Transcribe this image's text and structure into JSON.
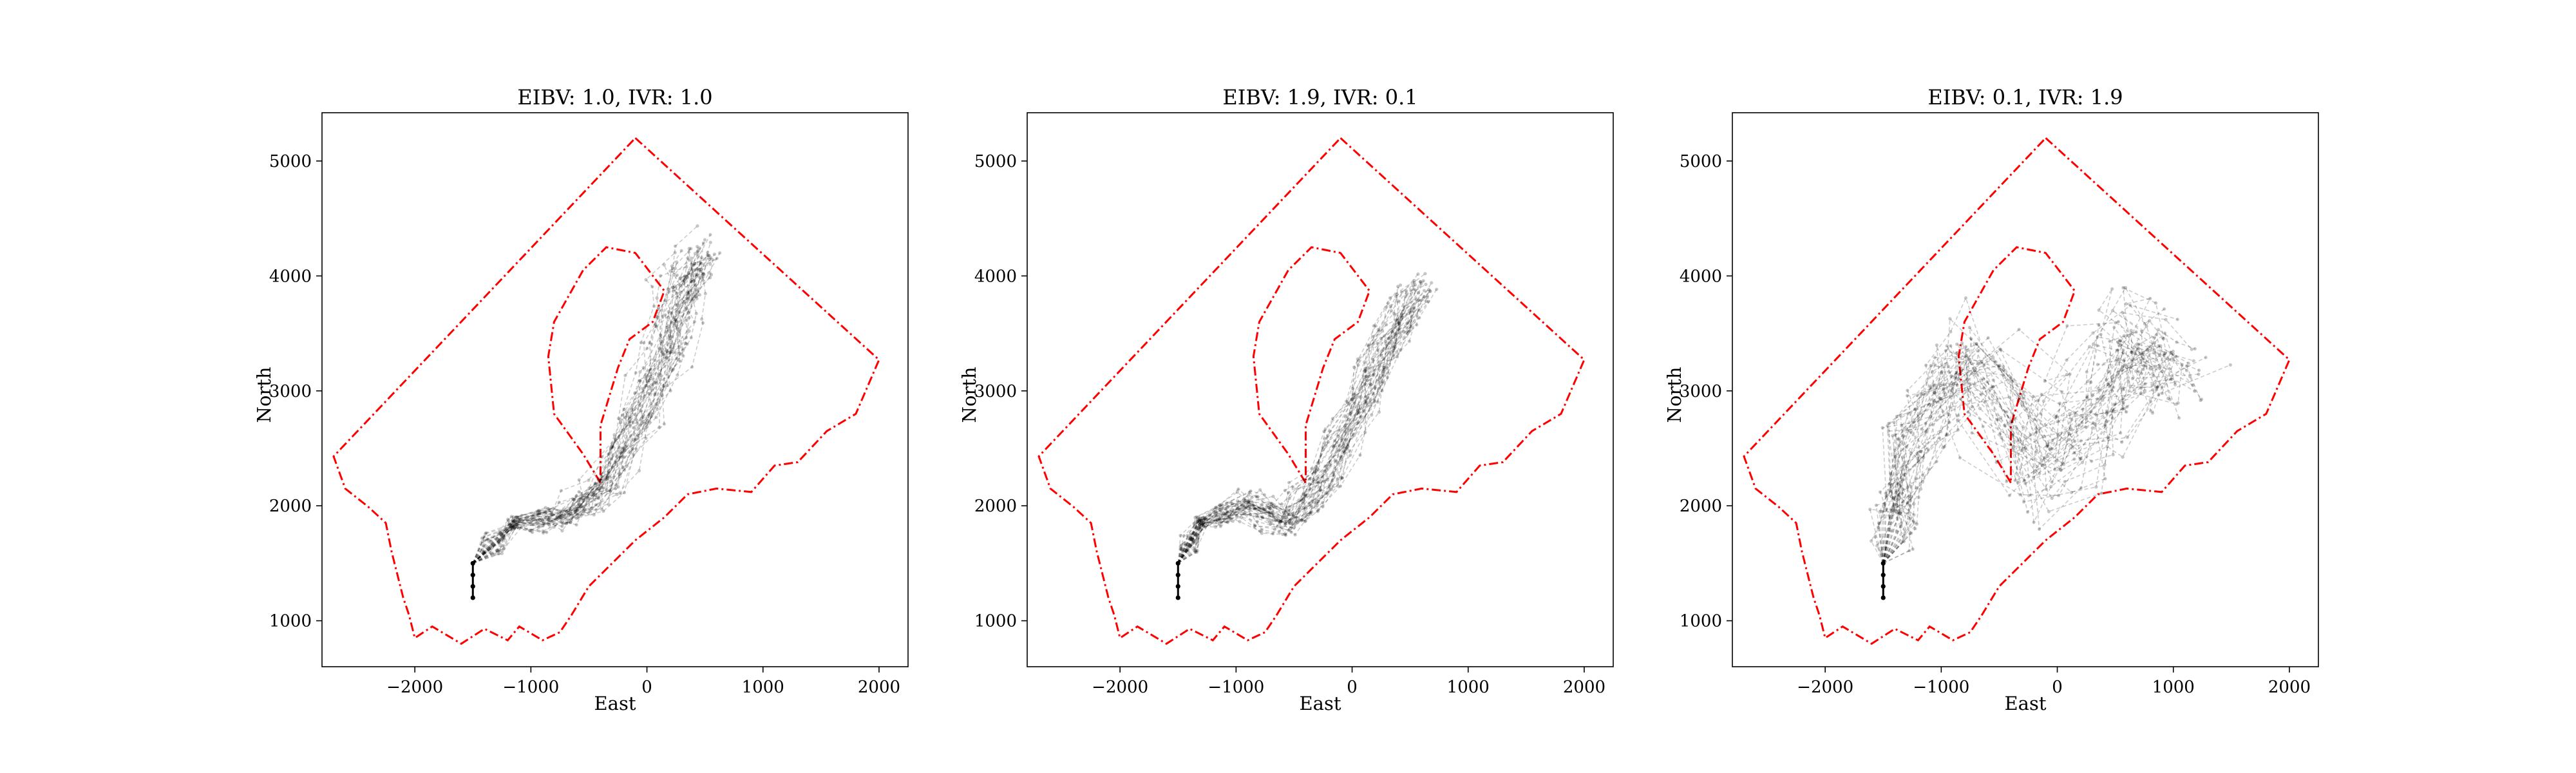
{
  "chart_data": [
    {
      "type": "line",
      "title": "EIBV: 1.0, IVR: 1.0",
      "xlabel": "East",
      "ylabel": "North",
      "xlim": [
        -2800,
        2250
      ],
      "ylim": [
        600,
        5420
      ],
      "xticks": [
        -2000,
        -1000,
        0,
        1000,
        2000
      ],
      "xtick_labels": [
        "−2000",
        "−1000",
        "0",
        "1000",
        "2000"
      ],
      "yticks": [
        1000,
        2000,
        3000,
        4000,
        5000
      ],
      "ytick_labels": [
        "1000",
        "2000",
        "3000",
        "4000",
        "5000"
      ],
      "boundary_color": "#ff0000",
      "trajectory_color": "#000000",
      "start": [
        -1500,
        1200
      ],
      "trajectory_count": 40,
      "trajectory_path": [
        [
          -1500,
          1500
        ],
        [
          -1150,
          1850
        ],
        [
          -700,
          1920
        ],
        [
          -380,
          2150
        ],
        [
          -80,
          2750
        ],
        [
          170,
          3350
        ],
        [
          300,
          3850
        ],
        [
          450,
          4150
        ]
      ],
      "trajectory_spread": 240
    },
    {
      "type": "line",
      "title": "EIBV: 1.9, IVR: 0.1",
      "xlabel": "East",
      "ylabel": "North",
      "xlim": [
        -2800,
        2250
      ],
      "ylim": [
        600,
        5420
      ],
      "xticks": [
        -2000,
        -1000,
        0,
        1000,
        2000
      ],
      "xtick_labels": [
        "−2000",
        "−1000",
        "0",
        "1000",
        "2000"
      ],
      "yticks": [
        1000,
        2000,
        3000,
        4000,
        5000
      ],
      "ytick_labels": [
        "1000",
        "2000",
        "3000",
        "4000",
        "5000"
      ],
      "boundary_color": "#ff0000",
      "trajectory_color": "#000000",
      "start": [
        -1500,
        1200
      ],
      "trajectory_count": 40,
      "trajectory_path": [
        [
          -1500,
          1500
        ],
        [
          -1300,
          1850
        ],
        [
          -900,
          2000
        ],
        [
          -550,
          1850
        ],
        [
          -250,
          2250
        ],
        [
          50,
          2850
        ],
        [
          300,
          3400
        ],
        [
          550,
          3850
        ]
      ],
      "trajectory_spread": 200
    },
    {
      "type": "line",
      "title": "EIBV: 0.1, IVR: 1.9",
      "xlabel": "East",
      "ylabel": "North",
      "xlim": [
        -2800,
        2250
      ],
      "ylim": [
        600,
        5420
      ],
      "xticks": [
        -2000,
        -1000,
        0,
        1000,
        2000
      ],
      "xtick_labels": [
        "−2000",
        "−1000",
        "0",
        "1000",
        "2000"
      ],
      "yticks": [
        1000,
        2000,
        3000,
        4000,
        5000
      ],
      "ytick_labels": [
        "1000",
        "2000",
        "3000",
        "4000",
        "5000"
      ],
      "boundary_color": "#ff0000",
      "trajectory_color": "#000000",
      "start": [
        -1500,
        1200
      ],
      "trajectory_count": 40,
      "trajectory_path": [
        [
          -1500,
          1500
        ],
        [
          -1350,
          2100
        ],
        [
          -1150,
          2800
        ],
        [
          -700,
          3300
        ],
        [
          -200,
          2300
        ],
        [
          300,
          2800
        ],
        [
          600,
          3500
        ],
        [
          900,
          3200
        ]
      ],
      "trajectory_spread": 550
    }
  ],
  "boundary_outer": [
    [
      -100,
      5200
    ],
    [
      2000,
      3270
    ],
    [
      1800,
      2800
    ],
    [
      1550,
      2650
    ],
    [
      1300,
      2380
    ],
    [
      1100,
      2350
    ],
    [
      900,
      2120
    ],
    [
      600,
      2150
    ],
    [
      350,
      2100
    ],
    [
      150,
      1900
    ],
    [
      -100,
      1700
    ],
    [
      -300,
      1500
    ],
    [
      -500,
      1300
    ],
    [
      -650,
      1050
    ],
    [
      -750,
      900
    ],
    [
      -900,
      830
    ],
    [
      -1100,
      950
    ],
    [
      -1200,
      830
    ],
    [
      -1400,
      930
    ],
    [
      -1600,
      800
    ],
    [
      -1850,
      950
    ],
    [
      -2000,
      850
    ],
    [
      -2050,
      1050
    ],
    [
      -2100,
      1200
    ],
    [
      -2150,
      1400
    ],
    [
      -2200,
      1600
    ],
    [
      -2250,
      1850
    ],
    [
      -2400,
      1990
    ],
    [
      -2600,
      2150
    ],
    [
      -2700,
      2430
    ],
    [
      -100,
      5200
    ]
  ],
  "boundary_inner": [
    [
      -400,
      2200
    ],
    [
      -550,
      2450
    ],
    [
      -800,
      2800
    ],
    [
      -850,
      3300
    ],
    [
      -800,
      3600
    ],
    [
      -550,
      4050
    ],
    [
      -350,
      4250
    ],
    [
      -100,
      4200
    ],
    [
      150,
      3870
    ],
    [
      50,
      3600
    ],
    [
      -150,
      3450
    ],
    [
      -250,
      3200
    ],
    [
      -400,
      2700
    ],
    [
      -400,
      2200
    ]
  ]
}
